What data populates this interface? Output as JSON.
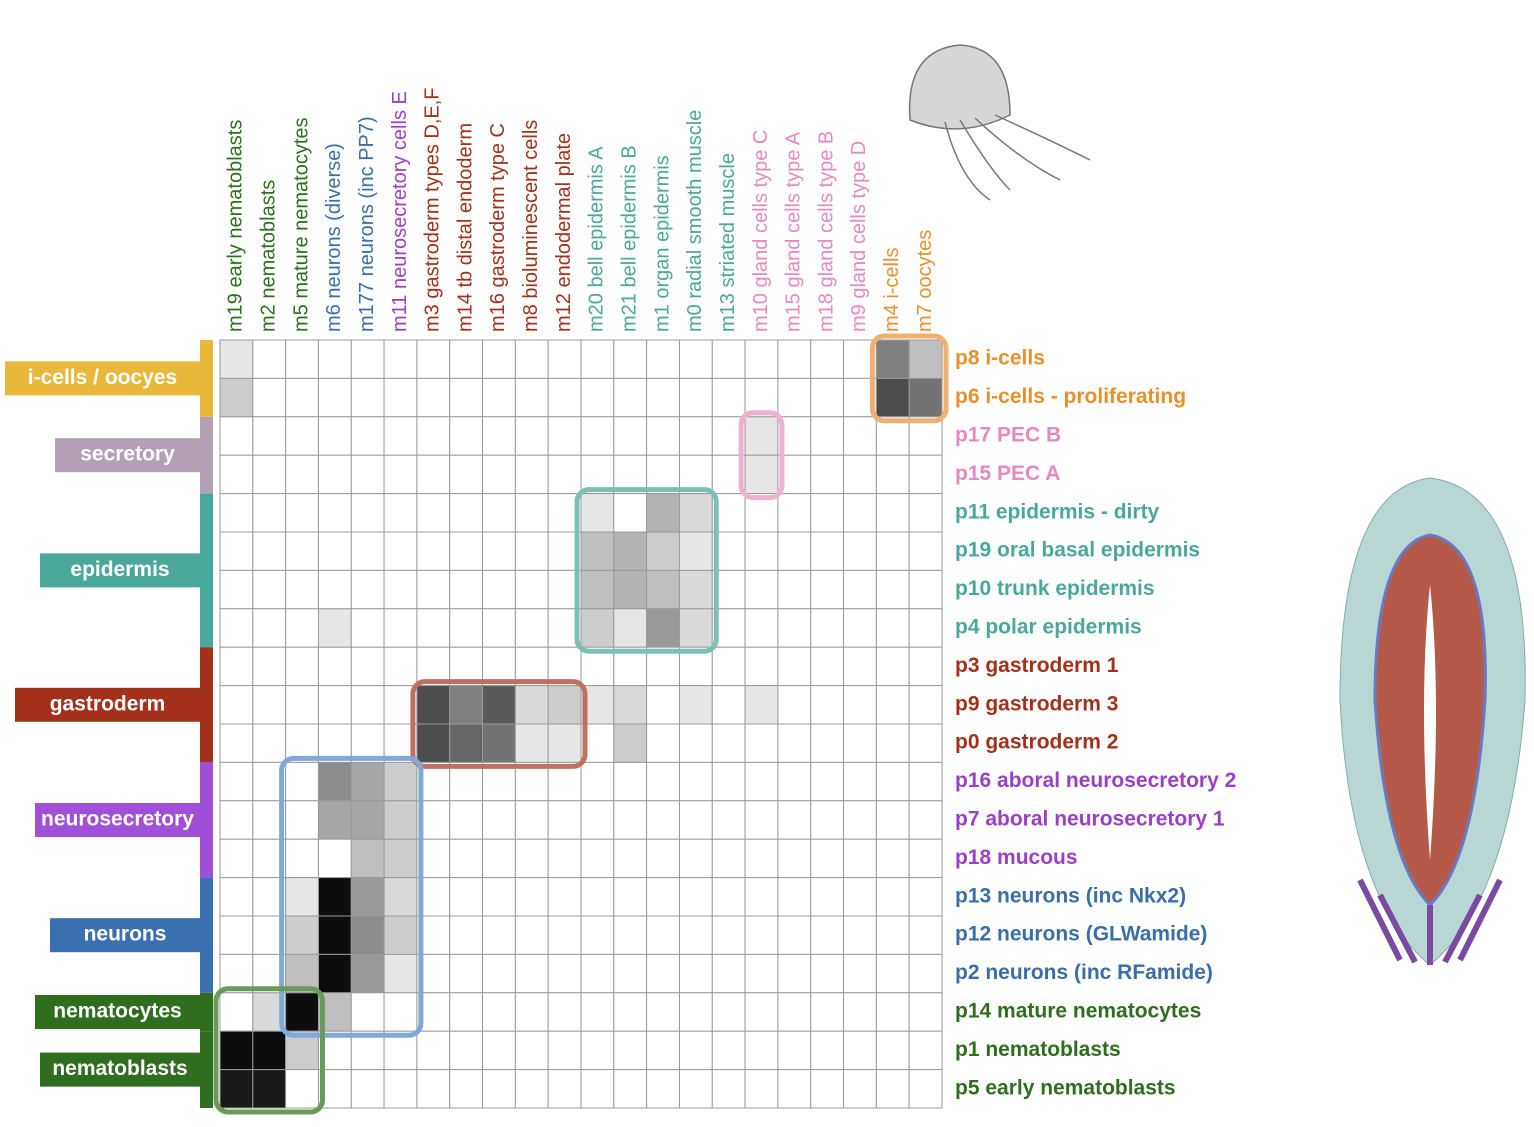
{
  "chart_data": {
    "type": "heatmap",
    "columns": [
      {
        "label": "m19 early nematoblasts",
        "color": "#2e6e1e"
      },
      {
        "label": "m2 nematoblasts",
        "color": "#2e6e1e"
      },
      {
        "label": "m5 mature nematocytes",
        "color": "#2e6e1e"
      },
      {
        "label": "m6 neurons (diverse)",
        "color": "#3a6ea8"
      },
      {
        "label": "m177 neurons (inc PP7)",
        "color": "#3a6ea8"
      },
      {
        "label": "m11 neurosecretory cells E",
        "color": "#9b3fc6"
      },
      {
        "label": "m3 gastroderm types D,E,F",
        "color": "#a3301b"
      },
      {
        "label": "m14 tb distal endoderm",
        "color": "#a3301b"
      },
      {
        "label": "m16 gastroderm type C",
        "color": "#a3301b"
      },
      {
        "label": "m8 bioluminescent cells",
        "color": "#a3301b"
      },
      {
        "label": "m12 endodermal plate",
        "color": "#a3301b"
      },
      {
        "label": "m20 bell epidermis A",
        "color": "#4aa89a"
      },
      {
        "label": "m21 bell epidermis B",
        "color": "#4aa89a"
      },
      {
        "label": "m1 organ epidermis",
        "color": "#4aa89a"
      },
      {
        "label": "m0 radial smooth muscle",
        "color": "#4aa89a"
      },
      {
        "label": "m13 striated muscle",
        "color": "#4aa89a"
      },
      {
        "label": "m10 gland cells type C",
        "color": "#e888c0"
      },
      {
        "label": "m15 gland cells type A",
        "color": "#e888c0"
      },
      {
        "label": "m18 gland cells type B",
        "color": "#e888c0"
      },
      {
        "label": "m9 gland cells type D",
        "color": "#e888c0"
      },
      {
        "label": "m4 i-cells",
        "color": "#e8902a"
      },
      {
        "label": "m7 oocytes",
        "color": "#e8902a"
      }
    ],
    "rows": [
      {
        "label": "p8 i-cells",
        "color": "#e8902a"
      },
      {
        "label": "p6  i-cells  - proliferating",
        "color": "#e8902a"
      },
      {
        "label": "p17 PEC B",
        "color": "#e888c0"
      },
      {
        "label": "p15 PEC A",
        "color": "#e888c0"
      },
      {
        "label": "p11 epidermis - dirty",
        "color": "#4aa89a"
      },
      {
        "label": "p19  oral basal epidermis",
        "color": "#4aa89a"
      },
      {
        "label": "p10 trunk epidermis",
        "color": "#4aa89a"
      },
      {
        "label": "p4 polar epidermis",
        "color": "#4aa89a"
      },
      {
        "label": "p3 gastroderm 1",
        "color": "#a3301b"
      },
      {
        "label": "p9 gastroderm 3",
        "color": "#a3301b"
      },
      {
        "label": "p0 gastroderm 2",
        "color": "#a3301b"
      },
      {
        "label": "p16 aboral neurosecretory 2",
        "color": "#9b3fc6"
      },
      {
        "label": "p7 aboral neurosecretory 1",
        "color": "#9b3fc6"
      },
      {
        "label": "p18  mucous",
        "color": "#9b3fc6"
      },
      {
        "label": "p13 neurons (inc Nkx2)",
        "color": "#3a6ea8"
      },
      {
        "label": "p12  neurons  (GLWamide)",
        "color": "#3a6ea8"
      },
      {
        "label": "p2 neurons (inc RFamide)",
        "color": "#3a6ea8"
      },
      {
        "label": "p14  mature nematocytes",
        "color": "#2e6e1e"
      },
      {
        "label": "p1  nematoblasts",
        "color": "#2e6e1e"
      },
      {
        "label": "p5 early nematoblasts",
        "color": "#2e6e1e"
      }
    ],
    "groups": [
      {
        "label": "i-cells / oocyes",
        "color": "#e8b83a"
      },
      {
        "label": "secretory",
        "color": "#b4a0b4"
      },
      {
        "label": "epidermis",
        "color": "#4aa89a"
      },
      {
        "label": "gastroderm",
        "color": "#a3301b"
      },
      {
        "label": "neurosecretory",
        "color": "#a050d8"
      },
      {
        "label": "neurons",
        "color": "#3a70b0"
      },
      {
        "label": "nematocytes",
        "color": "#2e6e1e"
      },
      {
        "label": "nematoblasts",
        "color": "#2e6e1e"
      }
    ],
    "cells": [
      [
        0.1,
        0,
        0,
        0,
        0,
        0,
        0,
        0,
        0,
        0,
        0,
        0,
        0,
        0,
        0,
        0,
        0,
        0,
        0,
        0,
        0.5,
        0.25
      ],
      [
        0.2,
        0,
        0,
        0,
        0,
        0,
        0,
        0,
        0,
        0,
        0,
        0,
        0,
        0,
        0,
        0,
        0,
        0,
        0,
        0,
        0.7,
        0.55
      ],
      [
        0,
        0,
        0,
        0,
        0,
        0,
        0,
        0,
        0,
        0,
        0,
        0,
        0,
        0,
        0,
        0,
        0.1,
        0,
        0,
        0,
        0,
        0
      ],
      [
        0,
        0,
        0,
        0,
        0,
        0,
        0,
        0,
        0,
        0,
        0,
        0,
        0,
        0,
        0,
        0,
        0.1,
        0,
        0,
        0,
        0,
        0
      ],
      [
        0,
        0,
        0,
        0,
        0,
        0,
        0,
        0,
        0,
        0,
        0,
        0.1,
        0,
        0.3,
        0.15,
        0,
        0,
        0,
        0,
        0,
        0,
        0
      ],
      [
        0,
        0,
        0,
        0,
        0,
        0,
        0,
        0,
        0,
        0,
        0,
        0.25,
        0.3,
        0.2,
        0.1,
        0,
        0,
        0,
        0,
        0,
        0,
        0
      ],
      [
        0,
        0,
        0,
        0,
        0,
        0,
        0,
        0,
        0,
        0,
        0,
        0.25,
        0.3,
        0.25,
        0.15,
        0,
        0,
        0,
        0,
        0,
        0,
        0
      ],
      [
        0,
        0,
        0,
        0.1,
        0,
        0,
        0,
        0,
        0,
        0,
        0,
        0.2,
        0.1,
        0.4,
        0.15,
        0,
        0,
        0,
        0,
        0,
        0,
        0
      ],
      [
        0,
        0,
        0,
        0,
        0,
        0,
        0,
        0,
        0,
        0,
        0,
        0,
        0,
        0,
        0,
        0,
        0,
        0,
        0,
        0,
        0,
        0
      ],
      [
        0,
        0,
        0,
        0,
        0,
        0,
        0.7,
        0.5,
        0.65,
        0.15,
        0.2,
        0.1,
        0.15,
        0,
        0.1,
        0,
        0.1,
        0,
        0,
        0,
        0,
        0
      ],
      [
        0,
        0,
        0,
        0,
        0,
        0,
        0.7,
        0.6,
        0.55,
        0.1,
        0.1,
        0,
        0.2,
        0,
        0,
        0,
        0,
        0,
        0,
        0,
        0,
        0
      ],
      [
        0,
        0,
        0,
        0.45,
        0.35,
        0.2,
        0,
        0,
        0,
        0,
        0,
        0,
        0,
        0,
        0,
        0,
        0,
        0,
        0,
        0,
        0,
        0
      ],
      [
        0,
        0,
        0,
        0.35,
        0.35,
        0.2,
        0,
        0,
        0,
        0,
        0,
        0,
        0,
        0,
        0,
        0,
        0,
        0,
        0,
        0,
        0,
        0
      ],
      [
        0,
        0,
        0,
        0,
        0.25,
        0.2,
        0,
        0,
        0,
        0,
        0,
        0,
        0,
        0,
        0,
        0,
        0,
        0,
        0,
        0,
        0,
        0
      ],
      [
        0,
        0,
        0.1,
        0.95,
        0.4,
        0.15,
        0,
        0,
        0,
        0,
        0,
        0,
        0,
        0,
        0,
        0,
        0,
        0,
        0,
        0,
        0,
        0
      ],
      [
        0,
        0,
        0.2,
        0.95,
        0.45,
        0.2,
        0,
        0,
        0,
        0,
        0,
        0,
        0,
        0,
        0,
        0,
        0,
        0,
        0,
        0,
        0,
        0
      ],
      [
        0,
        0,
        0.25,
        0.95,
        0.4,
        0.1,
        0,
        0,
        0,
        0,
        0,
        0,
        0,
        0,
        0,
        0,
        0,
        0,
        0,
        0,
        0,
        0
      ],
      [
        0,
        0.15,
        0.95,
        0.25,
        0,
        0,
        0,
        0,
        0,
        0,
        0,
        0,
        0,
        0,
        0,
        0,
        0,
        0,
        0,
        0,
        0,
        0
      ],
      [
        0.95,
        0.95,
        0.2,
        0,
        0,
        0,
        0,
        0,
        0,
        0,
        0,
        0,
        0,
        0,
        0,
        0,
        0,
        0,
        0,
        0,
        0,
        0
      ],
      [
        0.9,
        0.9,
        0,
        0,
        0,
        0,
        0,
        0,
        0,
        0,
        0,
        0,
        0,
        0,
        0,
        0,
        0,
        0,
        0,
        0,
        0,
        0
      ]
    ]
  }
}
